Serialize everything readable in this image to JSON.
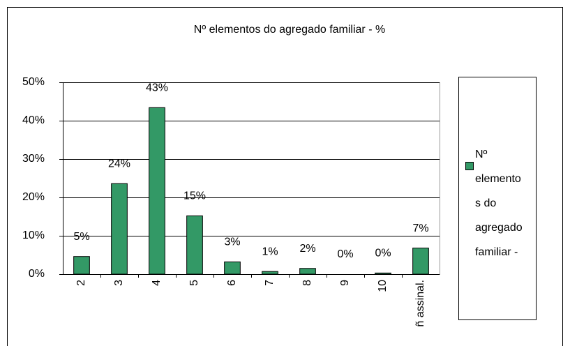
{
  "chart_data": {
    "type": "bar",
    "title": "Nº elementos do agregado familiar -  %",
    "categories": [
      "2",
      "3",
      "4",
      "5",
      "6",
      "7",
      "8",
      "9",
      "10",
      "ñ assinal."
    ],
    "series": [
      {
        "name": "Nº elementos do agregado familiar -",
        "color": "#339966",
        "values": [
          4.6,
          23.6,
          43.4,
          15.2,
          3.2,
          0.7,
          1.5,
          0,
          0.3,
          6.8
        ],
        "value_labels": [
          "5%",
          "24%",
          "43%",
          "15%",
          "3%",
          "1%",
          "2%",
          "0%",
          "0%",
          "7%"
        ]
      }
    ],
    "ylim": [
      0,
      50
    ],
    "yticks": [
      {
        "value": 0,
        "label": "0%"
      },
      {
        "value": 10,
        "label": "10%"
      },
      {
        "value": 20,
        "label": "20%"
      },
      {
        "value": 30,
        "label": "30%"
      },
      {
        "value": 40,
        "label": "40%"
      },
      {
        "value": 50,
        "label": "50%"
      }
    ],
    "grid": true,
    "legend": "right"
  }
}
